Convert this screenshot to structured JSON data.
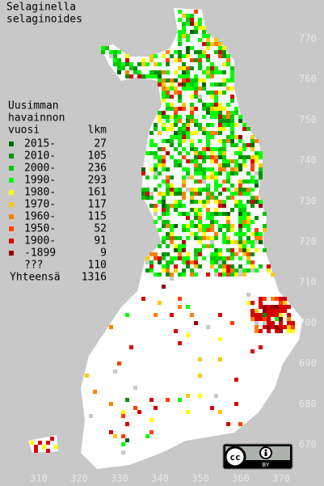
{
  "title": [
    "Selaginella",
    "selaginoides"
  ],
  "legend": {
    "header": [
      "Uusimman",
      "havainnon",
      "vuosi"
    ],
    "count_header": "lkm",
    "items": [
      {
        "label": "2015-",
        "count": 27,
        "color": "#006400"
      },
      {
        "label": "2010-",
        "count": 105,
        "color": "#009000"
      },
      {
        "label": "2000-",
        "count": 236,
        "color": "#00c800"
      },
      {
        "label": "1990-",
        "count": 293,
        "color": "#00ff00"
      },
      {
        "label": "1980-",
        "count": 161,
        "color": "#ffff00"
      },
      {
        "label": "1970-",
        "count": 117,
        "color": "#ffc800"
      },
      {
        "label": "1960-",
        "count": 115,
        "color": "#ff8000"
      },
      {
        "label": "1950-",
        "count": 52,
        "color": "#ff4000"
      },
      {
        "label": "1900-",
        "count": 91,
        "color": "#d80000"
      },
      {
        "label": "-1899",
        "count": 9,
        "color": "#900000"
      },
      {
        "label": "???",
        "count": 110,
        "color": "#c8c8c8"
      }
    ],
    "total_label": "Yhteensä",
    "total": 1316
  },
  "grid_labels": {
    "north": [
      770,
      760,
      750,
      740,
      730,
      720,
      710,
      700,
      690,
      680,
      670
    ],
    "east": [
      310,
      320,
      330,
      340,
      350,
      360,
      370
    ]
  },
  "license": {
    "cc": "cc",
    "by": "BY"
  }
}
